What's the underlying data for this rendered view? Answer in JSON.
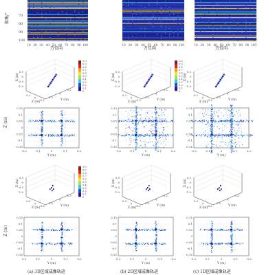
{
  "colors": {
    "navy": "#1f1f8a",
    "blue": "#2e49d6",
    "cyan": "#35c6e9",
    "yellow": "#f7df2d",
    "orange": "#f39a26",
    "red": "#d92721",
    "grid": "#cfcfcf",
    "axis": "#333333"
  },
  "row1": {
    "ylabel": "仰角/°",
    "yticks": [
      "70",
      "80",
      "90",
      "100"
    ],
    "xticks": [
      "10",
      "20",
      "30",
      "40",
      "50",
      "60",
      "70",
      "80",
      "90",
      "100"
    ],
    "xlabels": [
      "方位向",
      "方位向",
      "方位向"
    ]
  },
  "row2": {
    "labels_x": "X (m)",
    "labels_z": "Z (m)",
    "labels_y": "Y (m)",
    "x_ticks": [
      "0.5",
      "0",
      "-0.5",
      "-1.0"
    ],
    "z_ticks": [
      "0.2",
      "0",
      "-0.2"
    ],
    "y_ticks": [
      "0.2",
      "0",
      "-0.2"
    ],
    "colorbar_ticks": [
      "1.0",
      "0.9",
      "0.8",
      "0.7",
      "0.6",
      "0.5",
      "0.4",
      "0.3",
      "0.2",
      "0.1",
      "0"
    ]
  },
  "row3": {
    "ylabel": "Z (m)",
    "xlabel": "Y (m)",
    "yticks": [
      "0.15",
      "0.1",
      "0.05",
      "0",
      "-0.05",
      "-0.1",
      "-0.15"
    ],
    "xticks": [
      "-0.2",
      "-0.1",
      "0",
      "0.1",
      "0.2"
    ]
  },
  "row4": {
    "labels_x": "X (m)",
    "labels_z": "Z (m)",
    "labels_y": "Y (m)",
    "x_ticks": [
      "0.5",
      "0",
      "-0.5",
      "-1.0"
    ],
    "z_ticks": [
      "0.2",
      "0",
      "-0.2"
    ],
    "y_ticks": [
      "0.2",
      "0",
      "-0.2"
    ],
    "colorbar_ticks": [
      "1.0",
      "0.9",
      "0.8",
      "0.7",
      "0.6",
      "0.5",
      "0.4",
      "0.3",
      "0.2",
      "0.1",
      "0"
    ]
  },
  "row5": {
    "ylabel": "Z (m)",
    "xlabel": "Y (m)",
    "yticks": [
      "0.15",
      "0.1",
      "0.05",
      "0",
      "-0.05",
      "-0.1",
      "-0.15"
    ],
    "xticks": [
      "0.2",
      "0.1",
      "0",
      "-0.1",
      "-0.2"
    ]
  },
  "captions": [
    "(a) 3D区域成像轨迹",
    "(b) 2D区域成像轨迹",
    "(c) 1D区域成像轨迹"
  ]
}
